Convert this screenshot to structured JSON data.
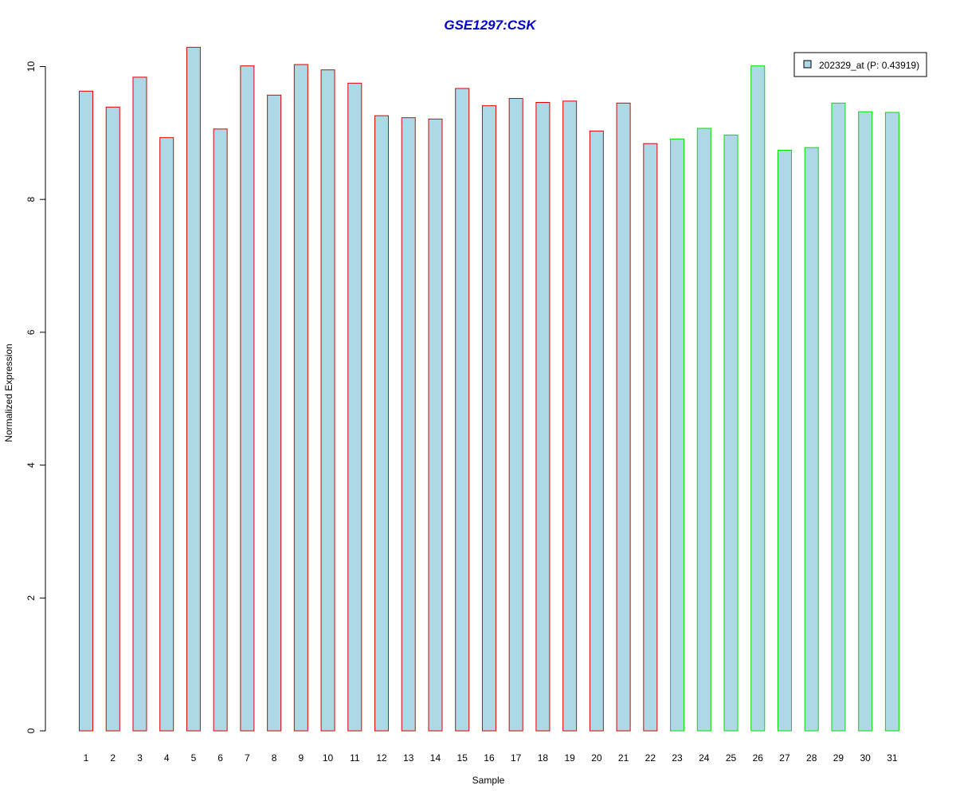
{
  "chart_data": {
    "type": "bar",
    "title": "GSE1297:CSK",
    "xlabel": "Sample",
    "ylabel": "Normalized Expression",
    "ylim": [
      0,
      10.3
    ],
    "yticks": [
      "0",
      "2",
      "4",
      "6",
      "8",
      "10"
    ],
    "categories": [
      "1",
      "2",
      "3",
      "4",
      "5",
      "6",
      "7",
      "8",
      "9",
      "10",
      "11",
      "12",
      "13",
      "14",
      "15",
      "16",
      "17",
      "18",
      "19",
      "20",
      "21",
      "22",
      "23",
      "24",
      "25",
      "26",
      "27",
      "28",
      "29",
      "30",
      "31"
    ],
    "series": [
      {
        "name": "202329_at (P: 0.43919)",
        "values": [
          9.63,
          9.39,
          9.84,
          8.93,
          10.29,
          9.06,
          10.01,
          9.57,
          10.03,
          9.95,
          9.75,
          9.26,
          9.23,
          9.21,
          9.67,
          9.41,
          9.52,
          9.46,
          9.48,
          9.03,
          9.45,
          8.84,
          8.91,
          9.07,
          8.97,
          10.01,
          8.74,
          8.78,
          9.45,
          9.32,
          9.31
        ]
      }
    ],
    "group_border_colors": [
      "#e00000",
      "#e00000",
      "#e00000",
      "#e00000",
      "#e00000",
      "#e00000",
      "#e00000",
      "#e00000",
      "#e00000",
      "#e00000",
      "#e00000",
      "#e00000",
      "#e00000",
      "#e00000",
      "#e00000",
      "#e00000",
      "#e00000",
      "#e00000",
      "#e00000",
      "#e00000",
      "#e00000",
      "#e00000",
      "#00e000",
      "#00e000",
      "#00e000",
      "#00e000",
      "#00e000",
      "#00e000",
      "#00e000",
      "#00e000",
      "#00e000"
    ],
    "legend_position": "top-right",
    "grid": false,
    "colors": {
      "bar_fill": "#add8e6",
      "title": "#0000cc"
    }
  }
}
